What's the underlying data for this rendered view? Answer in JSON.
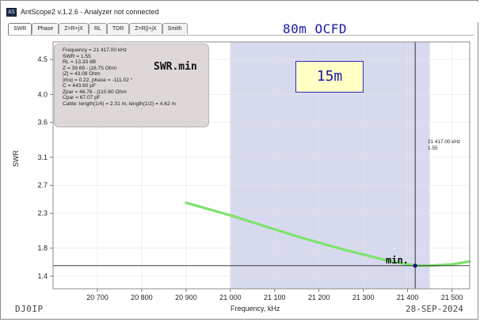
{
  "window": {
    "icon_text": "AS",
    "title": "AntScope2 v.1.2.6 - Analyzer not connected"
  },
  "tabs": [
    {
      "label": "SWR",
      "active": true
    },
    {
      "label": "Phase",
      "active": false
    },
    {
      "label": "Z=R+jX",
      "active": false
    },
    {
      "label": "RL",
      "active": false
    },
    {
      "label": "TDR",
      "active": false
    },
    {
      "label": "Z=R||+jX",
      "active": false
    },
    {
      "label": "Smith",
      "active": false
    }
  ],
  "annotations": {
    "doc_title": "80m OCFD",
    "swr_min": "SWR.min",
    "band": "15m",
    "min": "min.",
    "author": "DJ0IP",
    "date": "28-SEP-2024"
  },
  "info_box": {
    "lines": [
      "Frequency = 21 417.00 kHz",
      "SWR = 1.55",
      "RL = 13.33 dB",
      "Z = 39.69 - j16.75 Ohm",
      "|Z| = 43.08 Ohm",
      "|rho| = 0.22, phase = -111.02 °",
      "C = 443.60 pF",
      "Zpar = 46.76 - j110.80 Ohm",
      "Cpar = 67.07 pF",
      "Cable: length(1/4) = 2.31 m, length(1/2) = 4.62 m"
    ]
  },
  "cursor": {
    "freq_label": "21 417.00 kHz",
    "swr_label": "1.55",
    "freq": 21417,
    "swr": 1.55
  },
  "colors": {
    "curve": "#7fe36f",
    "band_fill": "#d7d9ef",
    "cursor_line": "#222222",
    "min_line": "#222222",
    "marker": "#16167a"
  },
  "chart_data": {
    "type": "line",
    "xlabel": "Frequency, kHz",
    "ylabel": "SWR",
    "xlim": [
      20600,
      21540
    ],
    "ylim": [
      1.22,
      4.75
    ],
    "x_ticks": [
      20700,
      20800,
      20900,
      21000,
      21100,
      21200,
      21300,
      21400,
      21500
    ],
    "x_tick_labels": [
      "20 700",
      "20 800",
      "20 900",
      "21 000",
      "21 100",
      "21 200",
      "21 300",
      "21 400",
      "21 500"
    ],
    "y_ticks": [
      1.4,
      1.8,
      2.3,
      2.7,
      3.1,
      3.6,
      4.0,
      4.5
    ],
    "y_tick_labels": [
      "1.4",
      "1.8",
      "2.3",
      "2.7",
      "3.1",
      "3.6",
      "4.0",
      "4.5"
    ],
    "band": [
      21000,
      21450
    ],
    "grid": true,
    "series": [
      {
        "x": [
          20900,
          20950,
          21000,
          21050,
          21100,
          21150,
          21200,
          21250,
          21300,
          21350,
          21400,
          21417,
          21450,
          21500,
          21540
        ],
        "y": [
          2.45,
          2.36,
          2.27,
          2.17,
          2.07,
          1.97,
          1.88,
          1.79,
          1.71,
          1.63,
          1.57,
          1.55,
          1.55,
          1.57,
          1.61
        ]
      }
    ]
  }
}
